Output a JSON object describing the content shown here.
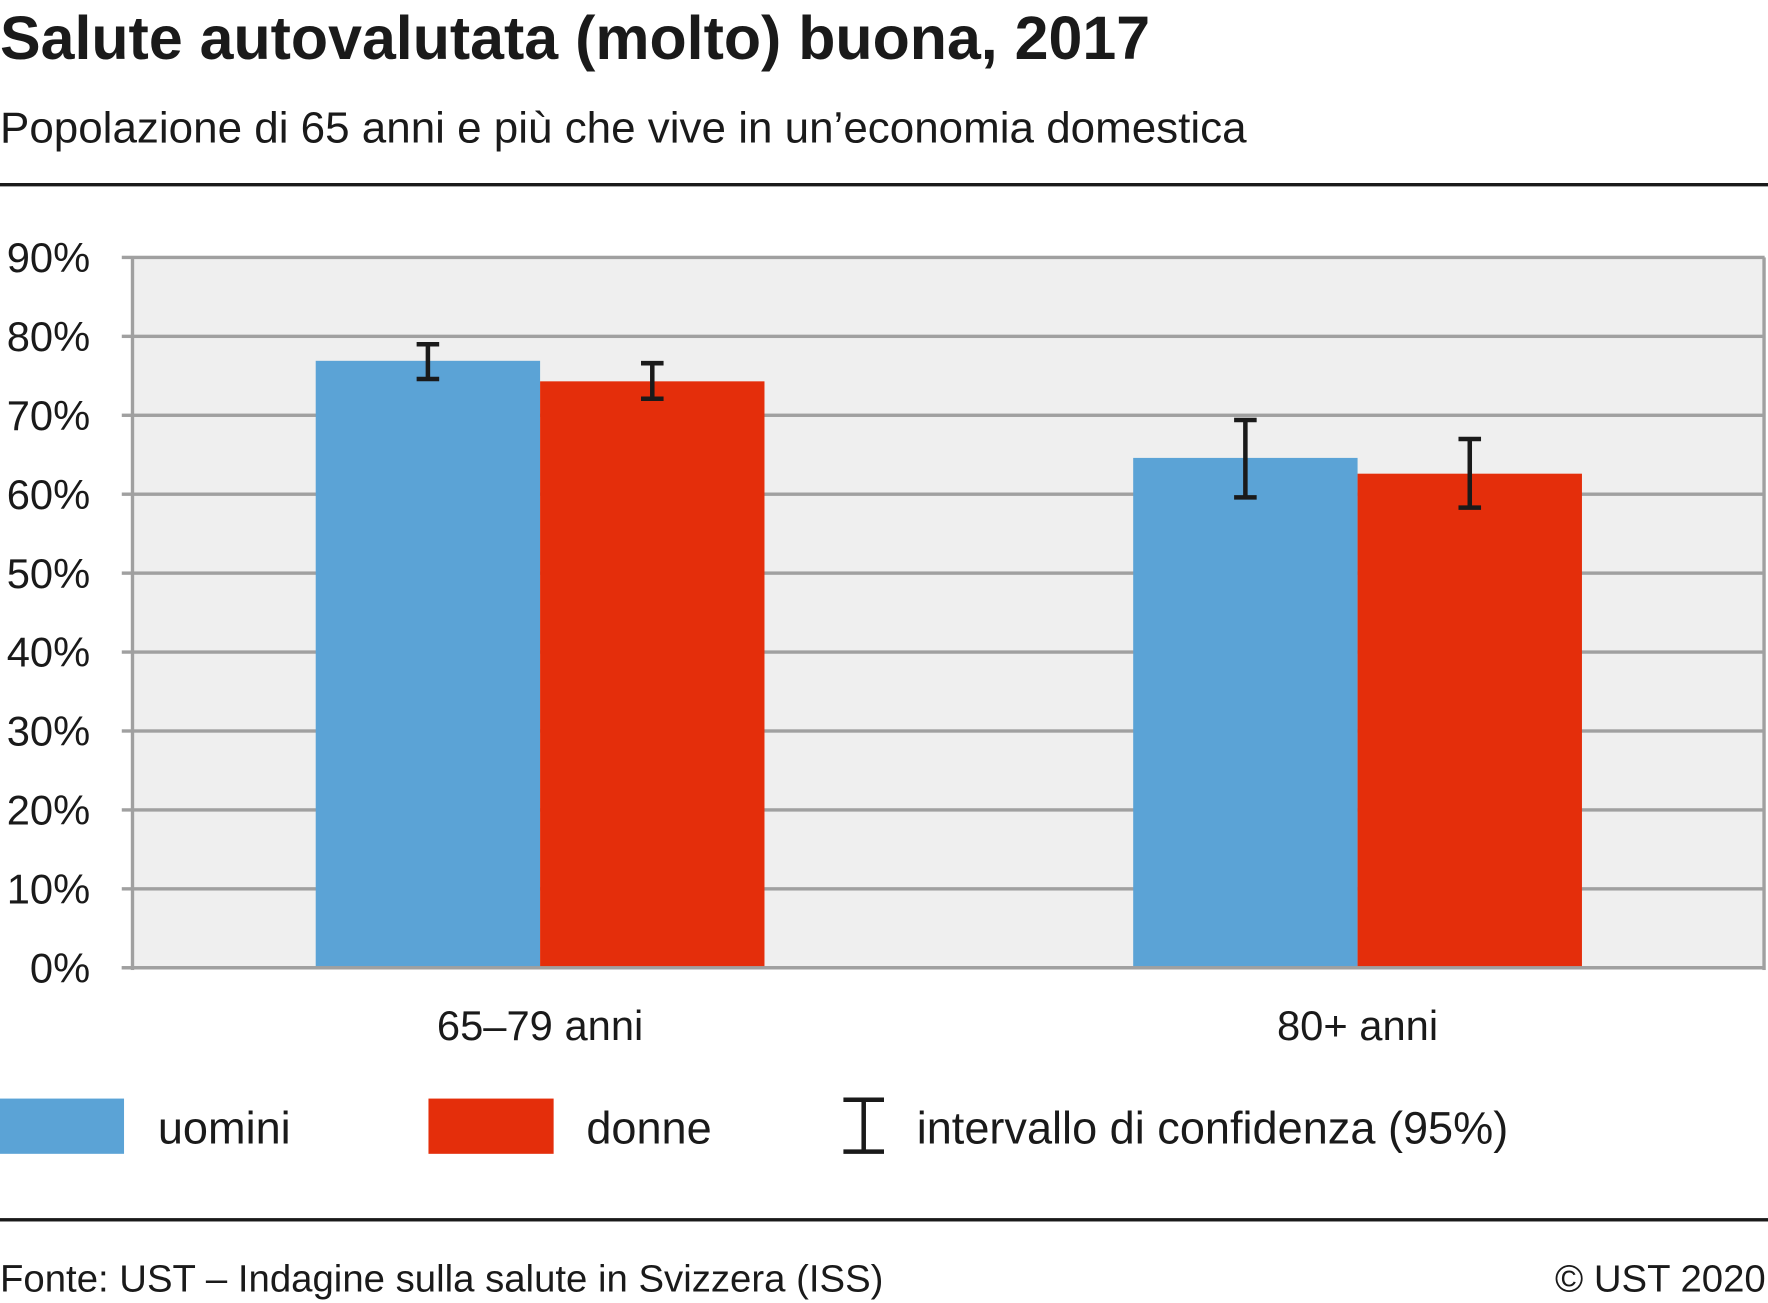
{
  "title": "Salute autovalutata (molto) buona, 2017",
  "subtitle": "Popolazione di 65 anni e più che vive in un’economia domestica",
  "chart_data": {
    "type": "bar",
    "categories": [
      "65–79 anni",
      "80+ anni"
    ],
    "series": [
      {
        "name": "uomini",
        "color": "#5ba3d6",
        "values": [
          76.9,
          64.6
        ],
        "ci_low": [
          74.6,
          59.6
        ],
        "ci_high": [
          79.0,
          69.4
        ]
      },
      {
        "name": "donne",
        "color": "#e42e0b",
        "values": [
          74.3,
          62.6
        ],
        "ci_low": [
          72.1,
          58.3
        ],
        "ci_high": [
          76.6,
          67.0
        ]
      }
    ],
    "ylim": [
      0,
      90
    ],
    "yticks": [
      "0%",
      "10%",
      "20%",
      "30%",
      "40%",
      "50%",
      "60%",
      "70%",
      "80%",
      "90%"
    ],
    "grid": true,
    "legend_position": "bottom",
    "ci_label": "intervallo di confidenza (95%)"
  },
  "footer": {
    "source": "Fonte: UST – Indagine sulla salute in Svizzera (ISS)",
    "copyright": "© UST 2020"
  }
}
